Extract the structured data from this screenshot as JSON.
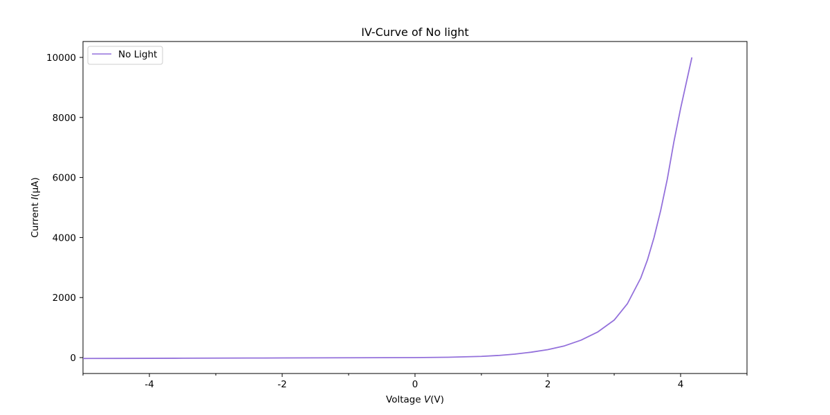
{
  "chart_data": {
    "type": "line",
    "title": "IV-Curve of No light",
    "xlabel": {
      "prefix": "Voltage ",
      "symbol": "V",
      "suffix": "(V)"
    },
    "ylabel": {
      "prefix": "Current ",
      "symbol": "I",
      "suffix": "(μA)"
    },
    "xlim": [
      -5,
      5
    ],
    "ylim": [
      -530,
      10530
    ],
    "x_ticks": [
      -4,
      -2,
      0,
      2,
      4
    ],
    "x_minor_ticks": [
      -5,
      -3,
      -1,
      1,
      3,
      5
    ],
    "y_ticks": [
      0,
      2000,
      4000,
      6000,
      8000,
      10000
    ],
    "grid": false,
    "legend_position": "upper left",
    "series": [
      {
        "name": "No Light",
        "color": "#9370db",
        "x": [
          -5.0,
          -4.5,
          -4.0,
          -3.5,
          -3.0,
          -2.5,
          -2.0,
          -1.5,
          -1.0,
          -0.5,
          0.0,
          0.5,
          1.0,
          1.25,
          1.5,
          1.75,
          2.0,
          2.25,
          2.5,
          2.75,
          3.0,
          3.2,
          3.4,
          3.5,
          3.6,
          3.7,
          3.8,
          3.9,
          4.0,
          4.1,
          4.17
        ],
        "y": [
          -30,
          -27,
          -24,
          -21,
          -18,
          -15,
          -12,
          -9,
          -6,
          -3,
          0,
          12,
          40,
          70,
          115,
          180,
          265,
          390,
          580,
          850,
          1250,
          1800,
          2650,
          3250,
          4000,
          4900,
          5950,
          7200,
          8300,
          9300,
          10000
        ]
      }
    ]
  }
}
